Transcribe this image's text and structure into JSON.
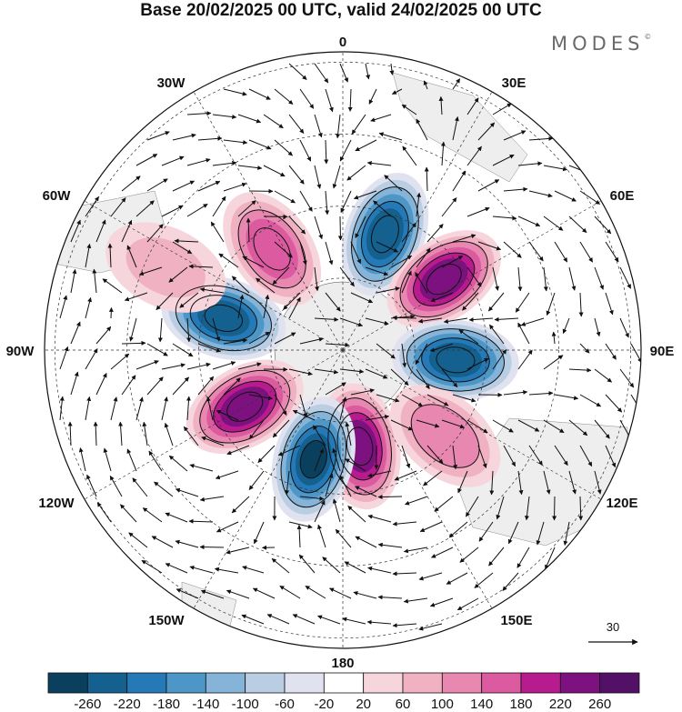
{
  "title": "Base 20/02/2025 00 UTC, valid 24/02/2025 00 UTC",
  "brand": "MODES",
  "brand_mark": "©",
  "chart_data": {
    "type": "heatmap",
    "projection": "south-polar-stereographic",
    "field": "filled anomaly contours with wind vectors",
    "longitude_labels": [
      "0",
      "30E",
      "60E",
      "90E",
      "120E",
      "150E",
      "180",
      "150W",
      "120W",
      "90W",
      "60W",
      "30W"
    ],
    "colorbar": {
      "ticks": [
        -260,
        -220,
        -180,
        -140,
        -100,
        -60,
        -20,
        20,
        60,
        100,
        140,
        180,
        220,
        260
      ],
      "colors": [
        "#0b3f5e",
        "#14608f",
        "#2479b6",
        "#4d97c8",
        "#85b4d8",
        "#b9cde3",
        "#e1e2ef",
        "#ffffff",
        "#f6d6dc",
        "#f0b2c3",
        "#e887b0",
        "#dc5aa0",
        "#b81b8e",
        "#7c117f",
        "#531067"
      ]
    },
    "reference_vector": "30",
    "anomaly_centres": [
      {
        "lon": 20,
        "colat_deg": 24,
        "value": -240
      },
      {
        "lon": 55,
        "colat_deg": 24,
        "value": 250
      },
      {
        "lon": 95,
        "colat_deg": 22,
        "value": -250
      },
      {
        "lon": 130,
        "colat_deg": 26,
        "value": 130
      },
      {
        "lon": 170,
        "colat_deg": 19,
        "value": 240
      },
      {
        "lon": -165,
        "colat_deg": 22,
        "value": -260
      },
      {
        "lon": -120,
        "colat_deg": 22,
        "value": 250
      },
      {
        "lon": -75,
        "colat_deg": 24,
        "value": -250
      },
      {
        "lon": -35,
        "colat_deg": 24,
        "value": 160
      },
      {
        "lon": -65,
        "colat_deg": 38,
        "value": 60
      }
    ]
  }
}
